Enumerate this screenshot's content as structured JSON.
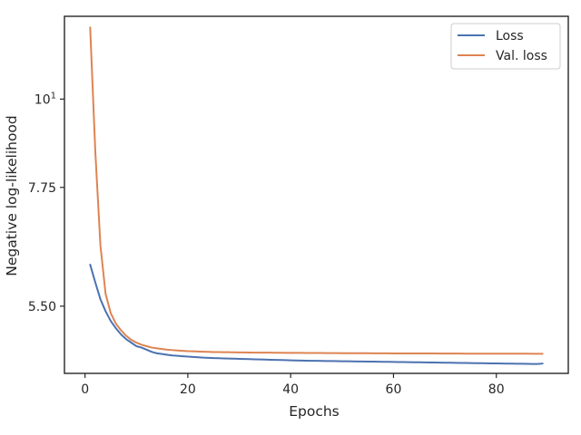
{
  "chart_data": {
    "type": "line",
    "xlabel": "Epochs",
    "ylabel": "Negative log-likelihood",
    "yscale": "log",
    "xlim": [
      -4,
      94
    ],
    "ylim": [
      4.53,
      12.7
    ],
    "x_ticks": [
      0,
      20,
      40,
      60,
      80
    ],
    "x_tick_labels": [
      "0",
      "20",
      "40",
      "60",
      "80"
    ],
    "y_ticks": [
      5.5,
      7.75,
      10
    ],
    "y_tick_labels": [
      "5.50",
      "7.75",
      "10"
    ],
    "y_tick_superscripts": [
      "",
      "",
      "1"
    ],
    "legend_position": "top-right",
    "grid": false,
    "series": [
      {
        "name": "Loss",
        "color": "#4c72b0",
        "x": [
          1,
          2,
          3,
          4,
          5,
          6,
          7,
          8,
          9,
          10,
          11,
          12,
          13,
          14,
          15,
          16,
          17,
          18,
          19,
          20,
          21,
          22,
          23,
          24,
          25,
          26,
          27,
          28,
          29,
          30,
          31,
          32,
          33,
          34,
          35,
          36,
          37,
          38,
          39,
          40,
          41,
          42,
          43,
          44,
          45,
          46,
          47,
          48,
          49,
          50,
          51,
          52,
          53,
          54,
          55,
          56,
          57,
          58,
          59,
          60,
          61,
          62,
          63,
          64,
          65,
          66,
          67,
          68,
          69,
          70,
          71,
          72,
          73,
          74,
          75,
          76,
          77,
          78,
          79,
          80,
          81,
          82,
          83,
          84,
          85,
          86,
          87,
          88,
          89
        ],
        "values": [
          6.2,
          5.89,
          5.61,
          5.42,
          5.27,
          5.16,
          5.07,
          5.0,
          4.95,
          4.9,
          4.88,
          4.85,
          4.82,
          4.8,
          4.79,
          4.78,
          4.77,
          4.765,
          4.76,
          4.755,
          4.75,
          4.745,
          4.74,
          4.738,
          4.735,
          4.733,
          4.73,
          4.728,
          4.726,
          4.724,
          4.722,
          4.72,
          4.718,
          4.716,
          4.714,
          4.712,
          4.71,
          4.708,
          4.706,
          4.704,
          4.702,
          4.7,
          4.699,
          4.698,
          4.697,
          4.696,
          4.695,
          4.694,
          4.693,
          4.692,
          4.691,
          4.69,
          4.689,
          4.688,
          4.687,
          4.686,
          4.685,
          4.684,
          4.683,
          4.682,
          4.681,
          4.68,
          4.679,
          4.678,
          4.677,
          4.676,
          4.675,
          4.674,
          4.673,
          4.672,
          4.671,
          4.67,
          4.669,
          4.668,
          4.667,
          4.666,
          4.665,
          4.664,
          4.663,
          4.662,
          4.661,
          4.66,
          4.659,
          4.658,
          4.657,
          4.656,
          4.655,
          4.654,
          4.66
        ]
      },
      {
        "name": "Val. loss",
        "color": "#dd8452",
        "x": [
          1,
          2,
          3,
          4,
          5,
          6,
          7,
          8,
          9,
          10,
          11,
          12,
          13,
          14,
          15,
          16,
          17,
          18,
          19,
          20,
          21,
          22,
          23,
          24,
          25,
          26,
          27,
          28,
          29,
          30,
          31,
          32,
          33,
          34,
          35,
          36,
          37,
          38,
          39,
          40,
          41,
          42,
          43,
          44,
          45,
          46,
          47,
          48,
          49,
          50,
          51,
          52,
          53,
          54,
          55,
          56,
          57,
          58,
          59,
          60,
          61,
          62,
          63,
          64,
          65,
          66,
          67,
          68,
          69,
          70,
          71,
          72,
          73,
          74,
          75,
          76,
          77,
          78,
          79,
          80,
          81,
          82,
          83,
          84,
          85,
          86,
          87,
          88,
          89
        ],
        "values": [
          12.3,
          8.6,
          6.55,
          5.7,
          5.39,
          5.23,
          5.13,
          5.05,
          4.99,
          4.95,
          4.92,
          4.9,
          4.88,
          4.87,
          4.86,
          4.85,
          4.845,
          4.84,
          4.835,
          4.83,
          4.828,
          4.825,
          4.822,
          4.82,
          4.818,
          4.817,
          4.816,
          4.815,
          4.814,
          4.813,
          4.812,
          4.811,
          4.81,
          4.81,
          4.809,
          4.809,
          4.808,
          4.808,
          4.807,
          4.807,
          4.806,
          4.806,
          4.805,
          4.805,
          4.804,
          4.804,
          4.803,
          4.803,
          4.803,
          4.802,
          4.802,
          4.802,
          4.801,
          4.801,
          4.801,
          4.8,
          4.8,
          4.8,
          4.8,
          4.799,
          4.799,
          4.799,
          4.799,
          4.798,
          4.798,
          4.798,
          4.798,
          4.798,
          4.797,
          4.797,
          4.797,
          4.797,
          4.797,
          4.796,
          4.796,
          4.796,
          4.796,
          4.796,
          4.796,
          4.795,
          4.795,
          4.795,
          4.795,
          4.795,
          4.795,
          4.795,
          4.794,
          4.794,
          4.794
        ]
      }
    ]
  }
}
